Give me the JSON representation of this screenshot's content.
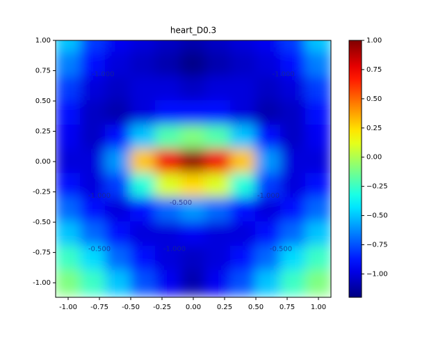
{
  "chart_data": {
    "type": "heatmap",
    "title": "heart_D0.3",
    "x": [
      -1.0,
      -0.8,
      -0.6,
      -0.4,
      -0.2,
      0.0,
      0.2,
      0.4,
      0.6,
      0.8,
      1.0
    ],
    "y": [
      1.0,
      0.8,
      0.6,
      0.4,
      0.2,
      0.0,
      -0.2,
      -0.4,
      -0.6,
      -0.8,
      -1.0
    ],
    "z": [
      [
        -0.5,
        -0.8,
        -0.95,
        -1.0,
        -1.05,
        -1.1,
        -1.05,
        -1.0,
        -0.95,
        -0.8,
        -0.5
      ],
      [
        -0.65,
        -0.9,
        -1.0,
        -1.05,
        -1.1,
        -1.18,
        -1.1,
        -1.05,
        -1.0,
        -0.9,
        -0.65
      ],
      [
        -0.8,
        -1.0,
        -1.05,
        -1.0,
        -1.0,
        -1.05,
        -1.0,
        -1.0,
        -1.05,
        -1.0,
        -0.8
      ],
      [
        -0.9,
        -1.05,
        -1.1,
        -1.0,
        -0.9,
        -0.9,
        -0.9,
        -1.0,
        -1.1,
        -1.05,
        -0.9
      ],
      [
        -0.95,
        -1.05,
        -0.9,
        -0.5,
        -0.2,
        -0.1,
        -0.2,
        -0.5,
        -0.9,
        -1.05,
        -0.95
      ],
      [
        -1.0,
        -1.0,
        -0.6,
        0.3,
        0.75,
        0.95,
        0.75,
        0.3,
        -0.6,
        -1.0,
        -1.0
      ],
      [
        -0.9,
        -1.0,
        -0.8,
        -0.3,
        0.1,
        0.25,
        0.1,
        -0.3,
        -0.8,
        -1.0,
        -0.9
      ],
      [
        -0.7,
        -0.9,
        -1.0,
        -0.9,
        -0.7,
        -0.6,
        -0.7,
        -0.9,
        -1.0,
        -0.9,
        -0.7
      ],
      [
        -0.5,
        -0.7,
        -0.9,
        -1.0,
        -1.0,
        -0.95,
        -1.0,
        -1.0,
        -0.9,
        -0.7,
        -0.5
      ],
      [
        -0.25,
        -0.45,
        -0.7,
        -0.9,
        -1.0,
        -1.05,
        -1.0,
        -0.9,
        -0.7,
        -0.45,
        -0.25
      ],
      [
        -0.1,
        -0.25,
        -0.5,
        -0.75,
        -0.95,
        -1.1,
        -0.95,
        -0.75,
        -0.5,
        -0.25,
        -0.1
      ]
    ],
    "xlim": [
      -1.1,
      1.1
    ],
    "ylim": [
      -1.12,
      1.0
    ],
    "xticks": [
      {
        "value": -1,
        "label": "-1.00"
      },
      {
        "value": -0.75,
        "label": "-0.75"
      },
      {
        "value": -0.5,
        "label": "-0.50"
      },
      {
        "value": -0.25,
        "label": "-0.25"
      },
      {
        "value": 0,
        "label": "0.00"
      },
      {
        "value": 0.25,
        "label": "0.25"
      },
      {
        "value": 0.5,
        "label": "0.50"
      },
      {
        "value": 0.75,
        "label": "0.75"
      },
      {
        "value": 1,
        "label": "1.00"
      }
    ],
    "yticks": [
      {
        "value": -1,
        "label": "-1.00"
      },
      {
        "value": -0.75,
        "label": "-0.75"
      },
      {
        "value": -0.5,
        "label": "-0.50"
      },
      {
        "value": -0.25,
        "label": "-0.25"
      },
      {
        "value": 0,
        "label": "0.00"
      },
      {
        "value": 0.25,
        "label": "0.25"
      },
      {
        "value": 0.5,
        "label": "0.50"
      },
      {
        "value": 0.75,
        "label": "0.75"
      },
      {
        "value": 1,
        "label": "1.00"
      }
    ],
    "clim": [
      -1.2,
      1.0
    ],
    "cticks": [
      {
        "value": -1,
        "label": "−1.00"
      },
      {
        "value": -0.75,
        "label": "−0.75"
      },
      {
        "value": -0.5,
        "label": "−0.50"
      },
      {
        "value": -0.25,
        "label": "−0.25"
      },
      {
        "value": 0,
        "label": "0.00"
      },
      {
        "value": 0.25,
        "label": "0.25"
      },
      {
        "value": 0.5,
        "label": "0.50"
      },
      {
        "value": 0.75,
        "label": "0.75"
      },
      {
        "value": 1,
        "label": "1.00"
      }
    ],
    "colormap": "jet",
    "contour_labels": [
      {
        "text": "-1.000",
        "x": -0.72,
        "y": 0.72
      },
      {
        "text": "-1.000",
        "x": 0.72,
        "y": 0.72
      },
      {
        "text": "-1.000",
        "x": -0.75,
        "y": -0.28
      },
      {
        "text": "-1.000",
        "x": 0.6,
        "y": -0.28
      },
      {
        "text": "-0.500",
        "x": -0.1,
        "y": -0.34
      },
      {
        "text": "-0.500",
        "x": -0.75,
        "y": -0.72
      },
      {
        "text": "-0.500",
        "x": 0.7,
        "y": -0.72
      },
      {
        "text": "-1.000",
        "x": -0.15,
        "y": -0.72
      }
    ]
  }
}
